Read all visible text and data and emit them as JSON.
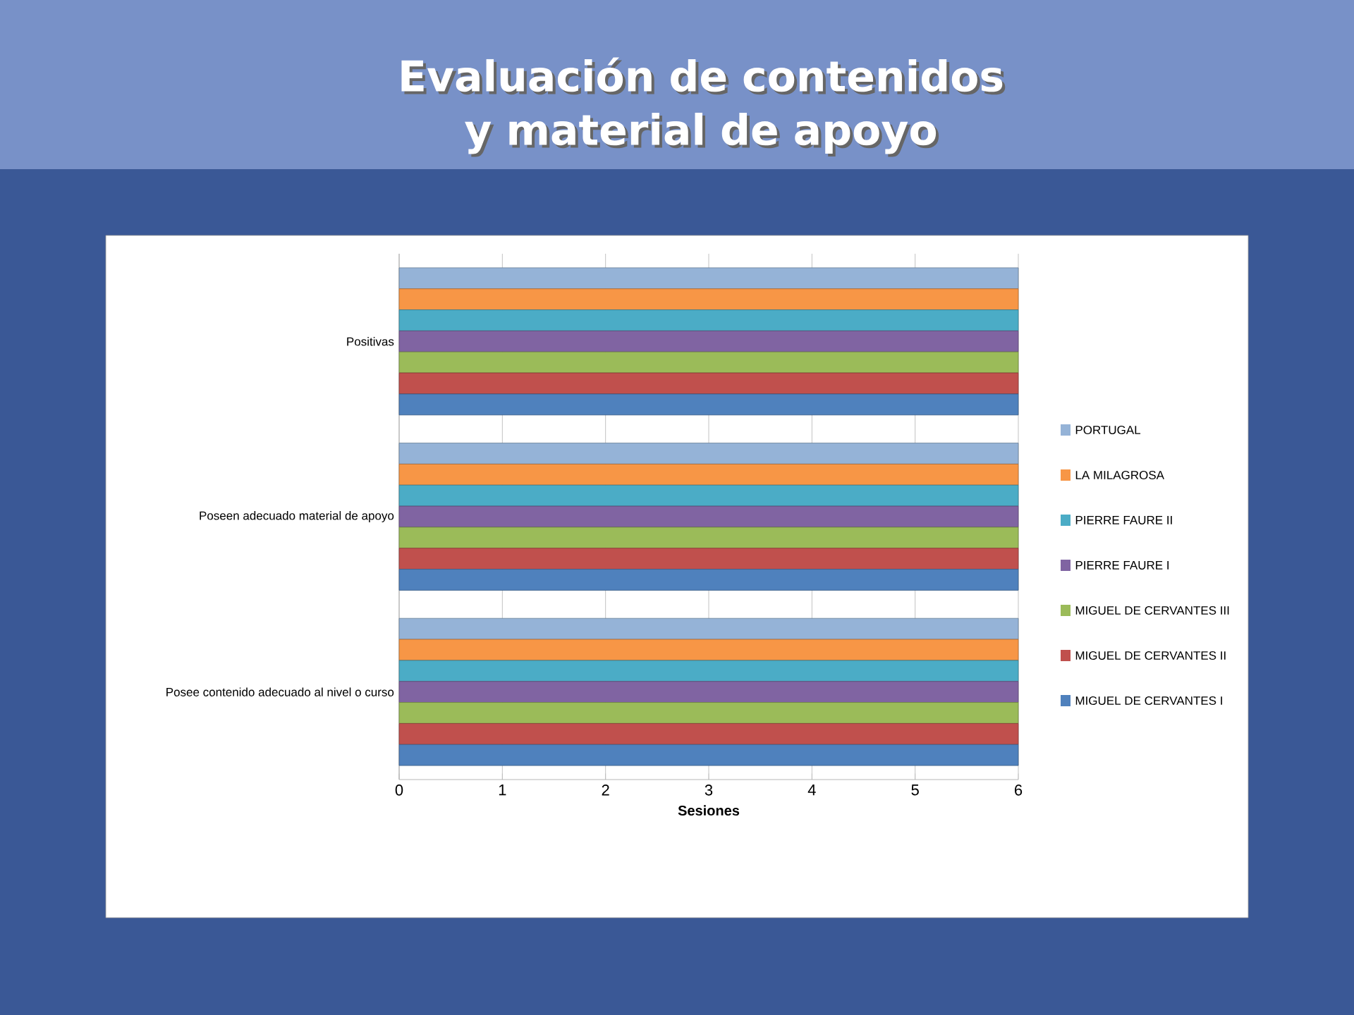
{
  "chart_data": {
    "type": "bar",
    "orientation": "horizontal",
    "title": "Evaluación de contenidos y material de apoyo",
    "xlabel": "Sesiones",
    "categories": [
      "Positivas",
      "Poseen adecuado material de apoyo",
      "Posee contenido adecuado al nivel o curso"
    ],
    "series": [
      {
        "name": "PORTUGAL",
        "color": "#95b3d7",
        "values": [
          6,
          6,
          6
        ]
      },
      {
        "name": "LA MILAGROSA",
        "color": "#f79646",
        "values": [
          6,
          6,
          6
        ]
      },
      {
        "name": "PIERRE FAURE II",
        "color": "#4bacc6",
        "values": [
          6,
          6,
          6
        ]
      },
      {
        "name": "PIERRE FAURE I",
        "color": "#8064a2",
        "values": [
          6,
          6,
          6
        ]
      },
      {
        "name": "MIGUEL DE CERVANTES III",
        "color": "#9bbb59",
        "values": [
          6,
          6,
          6
        ]
      },
      {
        "name": "MIGUEL DE CERVANTES II",
        "color": "#c0504d",
        "values": [
          6,
          6,
          6
        ]
      },
      {
        "name": "MIGUEL DE CERVANTES I",
        "color": "#4f81bd",
        "values": [
          6,
          6,
          6
        ]
      }
    ],
    "xlim": [
      0,
      6
    ],
    "xticks": [
      0,
      1,
      2,
      3,
      4,
      5,
      6
    ],
    "grid": "x",
    "legend": "right"
  }
}
